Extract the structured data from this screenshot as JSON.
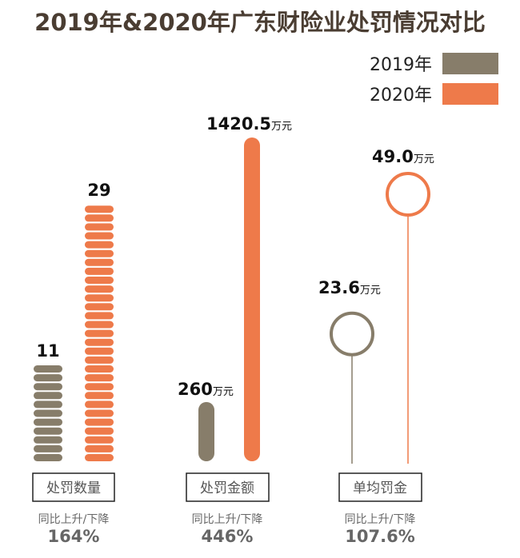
{
  "colors": {
    "y2019": "#877d6a",
    "y2020": "#ee7a4a"
  },
  "chart_data": {
    "type": "bar",
    "title": "2019年&2020年广东财险业处罚情况对比",
    "legend": {
      "position": "top-right",
      "entries": [
        "2019年",
        "2020年"
      ]
    },
    "series": [
      {
        "name": "2019年"
      },
      {
        "name": "2020年"
      }
    ],
    "groups": [
      {
        "category": "处罚数量",
        "style": "stacked-pills",
        "values": [
          11,
          29
        ],
        "labels": [
          "11",
          "29"
        ],
        "unit": "",
        "change_label": "同比上升/下降",
        "change": "164%"
      },
      {
        "category": "处罚金额",
        "style": "bar",
        "values": [
          260,
          1420.5
        ],
        "labels": [
          "260",
          "1420.5"
        ],
        "unit": "万元",
        "change_label": "同比上升/下降",
        "change": "446%"
      },
      {
        "category": "单均罚金",
        "style": "lollipop",
        "values": [
          23.6,
          49.0
        ],
        "labels": [
          "23.6",
          "49.0"
        ],
        "unit": "万元",
        "change_label": "同比上升/下降",
        "change": "107.6%"
      }
    ]
  }
}
